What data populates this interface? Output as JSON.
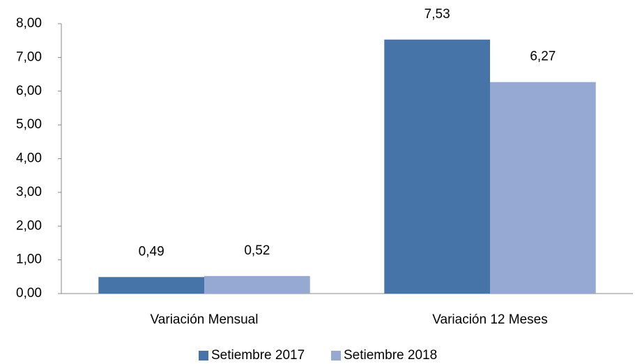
{
  "chart_data": {
    "type": "bar",
    "categories": [
      "Variación Mensual",
      "Variación 12 Meses"
    ],
    "series": [
      {
        "name": "Setiembre 2017",
        "color": "#4673a8",
        "values": [
          0.49,
          7.53
        ],
        "value_labels": [
          "0,49",
          "7,53"
        ]
      },
      {
        "name": "Setiembre 2018",
        "color": "#95a9d2",
        "values": [
          0.52,
          6.27
        ],
        "value_labels": [
          "0,52",
          "6,27"
        ]
      }
    ],
    "ylim": [
      0,
      8
    ],
    "yticks": [
      {
        "value": 0,
        "label": "0,00"
      },
      {
        "value": 1,
        "label": "1,00"
      },
      {
        "value": 2,
        "label": "2,00"
      },
      {
        "value": 3,
        "label": "3,00"
      },
      {
        "value": 4,
        "label": "4,00"
      },
      {
        "value": 5,
        "label": "5,00"
      },
      {
        "value": 6,
        "label": "6,00"
      },
      {
        "value": 7,
        "label": "7,00"
      },
      {
        "value": 8,
        "label": "8,00"
      }
    ],
    "grid": false,
    "legend": "bottom"
  }
}
